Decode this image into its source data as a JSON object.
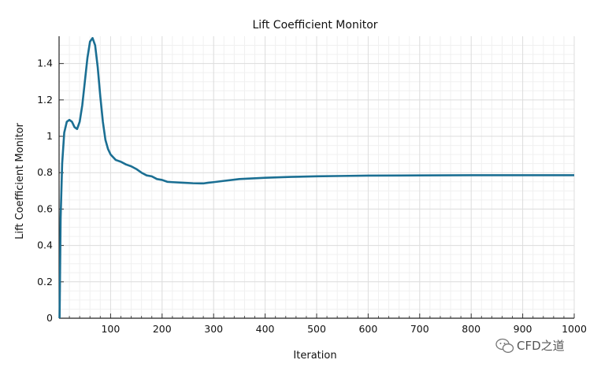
{
  "chart_data": {
    "type": "line",
    "title": "Lift Coefficient Monitor",
    "xlabel": "Iteration",
    "ylabel": "Lift Coefficient Monitor",
    "xlim": [
      0,
      1000
    ],
    "ylim": [
      0,
      1.55
    ],
    "xticks": [
      "100",
      "200",
      "300",
      "400",
      "500",
      "600",
      "700",
      "800",
      "900",
      "1000"
    ],
    "yticks": [
      "0",
      "0.2",
      "0.4",
      "0.6",
      "0.8",
      "1",
      "1.2",
      "1.4"
    ],
    "grid": true,
    "series": [
      {
        "color": "#1b6f93",
        "x": [
          1,
          3,
          6,
          10,
          15,
          20,
          25,
          30,
          35,
          40,
          45,
          50,
          55,
          60,
          65,
          70,
          75,
          80,
          85,
          90,
          95,
          100,
          110,
          120,
          130,
          140,
          150,
          160,
          170,
          180,
          190,
          200,
          210,
          220,
          240,
          260,
          280,
          290,
          300,
          320,
          350,
          400,
          450,
          500,
          550,
          600,
          700,
          800,
          900,
          1000
        ],
        "y": [
          0.0,
          0.55,
          0.85,
          1.02,
          1.08,
          1.09,
          1.08,
          1.05,
          1.04,
          1.08,
          1.17,
          1.3,
          1.43,
          1.52,
          1.54,
          1.5,
          1.38,
          1.22,
          1.08,
          0.98,
          0.93,
          0.9,
          0.87,
          0.86,
          0.845,
          0.835,
          0.82,
          0.8,
          0.785,
          0.78,
          0.765,
          0.76,
          0.75,
          0.748,
          0.745,
          0.742,
          0.741,
          0.745,
          0.748,
          0.755,
          0.765,
          0.772,
          0.777,
          0.78,
          0.782,
          0.784,
          0.785,
          0.786,
          0.786,
          0.786
        ]
      }
    ]
  },
  "watermark": {
    "text": "CFD之道"
  }
}
